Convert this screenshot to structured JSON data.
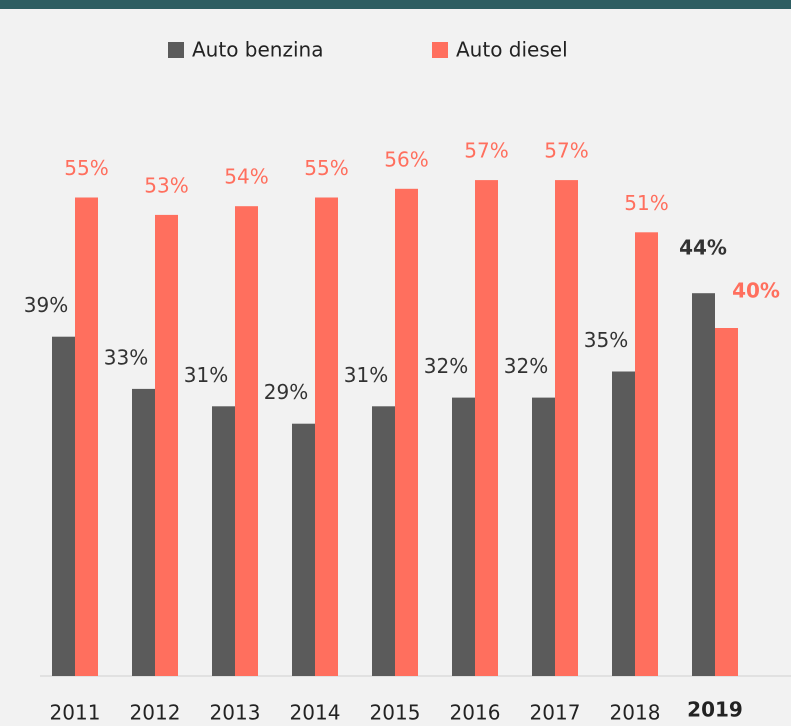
{
  "chart_data": {
    "type": "bar",
    "categories": [
      "2011",
      "2012",
      "2013",
      "2014",
      "2015",
      "2016",
      "2017",
      "2018",
      "2019"
    ],
    "series": [
      {
        "name": "Auto benzina",
        "color": "#5b5b5b",
        "values": [
          39,
          33,
          31,
          29,
          31,
          32,
          32,
          35,
          44
        ],
        "value_labels": [
          "39%",
          "33%",
          "31%",
          "29%",
          "31%",
          "32%",
          "32%",
          "35%",
          "44%"
        ]
      },
      {
        "name": "Auto diesel",
        "color": "#ff6f5e",
        "values": [
          55,
          53,
          54,
          55,
          56,
          57,
          57,
          51,
          40
        ],
        "value_labels": [
          "55%",
          "53%",
          "54%",
          "55%",
          "56%",
          "57%",
          "57%",
          "51%",
          "40%"
        ]
      }
    ],
    "legend": "top"
  }
}
